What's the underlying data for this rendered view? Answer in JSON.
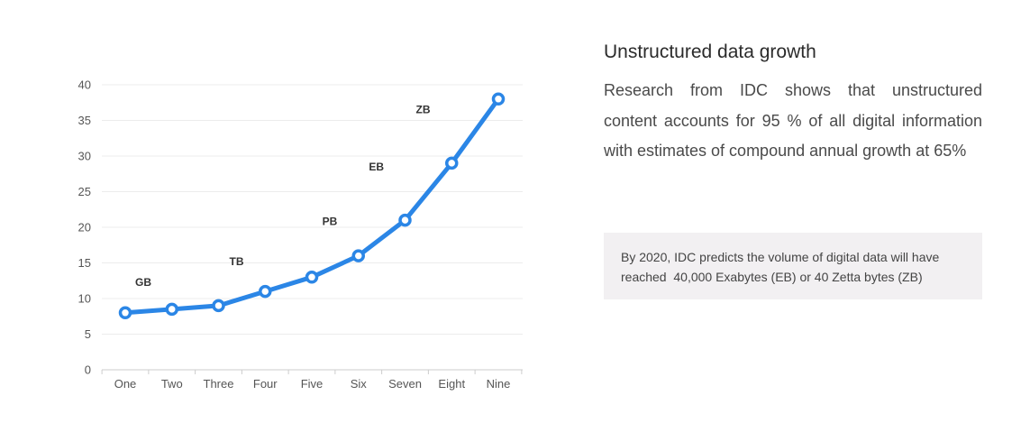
{
  "chart_data": {
    "type": "line",
    "categories": [
      "One",
      "Two",
      "Three",
      "Four",
      "Five",
      "Six",
      "Seven",
      "Eight",
      "Nine"
    ],
    "values": [
      8,
      8.5,
      9,
      11,
      13,
      16,
      21,
      29,
      38
    ],
    "ylim": [
      0,
      40
    ],
    "yticks": [
      "0",
      "5",
      "10",
      "15",
      "20",
      "25",
      "30",
      "35",
      "40"
    ],
    "grid": true,
    "color": "#2b86e6",
    "annotations": [
      {
        "text": "GB",
        "x": "One",
        "y": 12.3
      },
      {
        "text": "TB",
        "x": "Three",
        "y": 15.2
      },
      {
        "text": "PB",
        "x": "Five",
        "y": 20.8
      },
      {
        "text": "EB",
        "x": "Six",
        "y": 28.5
      },
      {
        "text": "ZB",
        "x": "Seven",
        "y": 36.5
      }
    ]
  },
  "side": {
    "title": "Unstructured data growth",
    "body_lines": [
      "Research from IDC shows that unstructured",
      "content accounts for 95 % of  all digital information",
      "with estimates of compound annual growth at 65%"
    ],
    "note_lines": [
      "By 2020, IDC predicts the volume of digital data will have",
      "reached  40,000 Exabytes (EB) or 40 Zetta bytes (ZB)"
    ]
  }
}
